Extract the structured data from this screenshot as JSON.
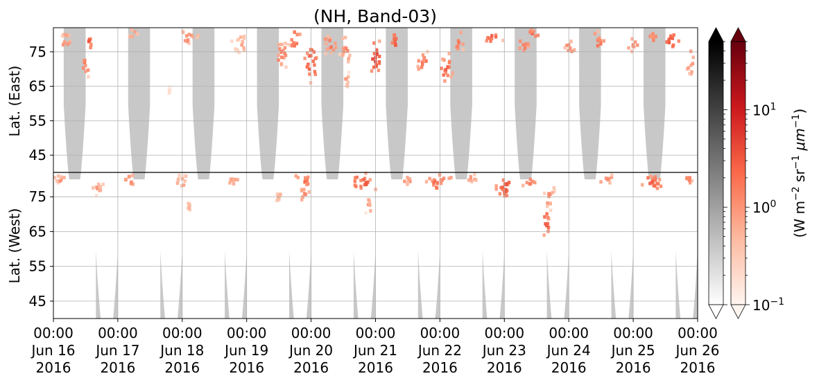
{
  "chart_data": {
    "type": "heatmap",
    "title": "(NH, Band-03)",
    "x": {
      "range": [
        "2016-06-16T00:00",
        "2016-06-26T00:00"
      ],
      "ticks": [
        {
          "line1": "00:00",
          "line2": "Jun 16",
          "line3": "2016"
        },
        {
          "line1": "00:00",
          "line2": "Jun 17",
          "line3": "2016"
        },
        {
          "line1": "00:00",
          "line2": "Jun 18",
          "line3": "2016"
        },
        {
          "line1": "00:00",
          "line2": "Jun 19",
          "line3": "2016"
        },
        {
          "line1": "00:00",
          "line2": "Jun 20",
          "line3": "2016"
        },
        {
          "line1": "00:00",
          "line2": "Jun 21",
          "line3": "2016"
        },
        {
          "line1": "00:00",
          "line2": "Jun 22",
          "line3": "2016"
        },
        {
          "line1": "00:00",
          "line2": "Jun 23",
          "line3": "2016"
        },
        {
          "line1": "00:00",
          "line2": "Jun 24",
          "line3": "2016"
        },
        {
          "line1": "00:00",
          "line2": "Jun 25",
          "line3": "2016"
        },
        {
          "line1": "00:00",
          "line2": "Jun 26",
          "line3": "2016"
        }
      ]
    },
    "y_east": {
      "label": "Lat. (East)",
      "ticks": [
        "45",
        "55",
        "65",
        "75"
      ],
      "values": [
        45,
        55,
        65,
        75
      ],
      "range": [
        40,
        82
      ]
    },
    "y_west": {
      "label": "Lat. (West)",
      "ticks": [
        "75",
        "65",
        "55",
        "45"
      ],
      "values": [
        75,
        65,
        55,
        45
      ],
      "range": [
        82,
        40
      ]
    },
    "grid": true,
    "colorbar_gray": {
      "scale": "log",
      "range": [
        0.1,
        50
      ],
      "extend": "both",
      "colors": [
        "#ffffff",
        "#000000"
      ]
    },
    "colorbar_red": {
      "scale": "log",
      "range": [
        0.1,
        50
      ],
      "extend": "both",
      "colors": [
        "#fff5f0",
        "#fcbba1",
        "#fb6a4a",
        "#cb181d",
        "#67000d"
      ],
      "ticks": [
        {
          "base": "10",
          "exp": "1",
          "value": 10
        },
        {
          "base": "10",
          "exp": "0",
          "value": 1
        },
        {
          "base": "10",
          "exp": "−1",
          "value": 0.1
        }
      ],
      "label": {
        "main": "(W m",
        "e1": "−2",
        "mid1": " sr",
        "e2": "−1",
        "mid2": " μm",
        "e3": "−1",
        "end": ")"
      }
    },
    "nodata_color": "#c8c8c8",
    "nodata_east_day_fraction": 0.33,
    "nodata_west_day_fraction": 0.83,
    "nodata_half_width_days": 0.17,
    "nodata_lat_limit": 59.5,
    "activity_clusters": [
      {
        "side": "east",
        "day": 0.2,
        "lat": 78,
        "w": 0.12,
        "h": 4,
        "peak": 1.0
      },
      {
        "side": "east",
        "day": 0.5,
        "lat": 71,
        "w": 0.06,
        "h": 5,
        "peak": 2.0
      },
      {
        "side": "east",
        "day": 0.55,
        "lat": 78,
        "w": 0.06,
        "h": 3,
        "peak": 2.5
      },
      {
        "side": "east",
        "day": 1.25,
        "lat": 80,
        "w": 0.15,
        "h": 2,
        "peak": 0.8
      },
      {
        "side": "east",
        "day": 2.1,
        "lat": 79,
        "w": 0.18,
        "h": 3,
        "peak": 1.0
      },
      {
        "side": "east",
        "day": 2.9,
        "lat": 77,
        "w": 0.15,
        "h": 4,
        "peak": 0.7
      },
      {
        "side": "east",
        "day": 3.55,
        "lat": 74,
        "w": 0.15,
        "h": 5,
        "peak": 1.5
      },
      {
        "side": "east",
        "day": 3.75,
        "lat": 78,
        "w": 0.12,
        "h": 4,
        "peak": 2.2
      },
      {
        "side": "east",
        "day": 4.0,
        "lat": 72,
        "w": 0.12,
        "h": 7,
        "peak": 3.0
      },
      {
        "side": "east",
        "day": 4.3,
        "lat": 77,
        "w": 0.15,
        "h": 4,
        "peak": 1.5
      },
      {
        "side": "east",
        "day": 4.55,
        "lat": 75,
        "w": 0.12,
        "h": 5,
        "peak": 1.2
      },
      {
        "side": "east",
        "day": 4.55,
        "lat": 67,
        "w": 0.06,
        "h": 3,
        "peak": 0.8
      },
      {
        "side": "east",
        "day": 5.0,
        "lat": 73,
        "w": 0.12,
        "h": 6,
        "peak": 4.5
      },
      {
        "side": "east",
        "day": 5.3,
        "lat": 78,
        "w": 0.12,
        "h": 3,
        "peak": 2.5
      },
      {
        "side": "east",
        "day": 5.75,
        "lat": 72,
        "w": 0.15,
        "h": 4,
        "peak": 1.5
      },
      {
        "side": "east",
        "day": 6.1,
        "lat": 70,
        "w": 0.12,
        "h": 6,
        "peak": 2.5
      },
      {
        "side": "east",
        "day": 6.3,
        "lat": 78,
        "w": 0.12,
        "h": 3,
        "peak": 2.0
      },
      {
        "side": "east",
        "day": 6.8,
        "lat": 79,
        "w": 0.2,
        "h": 2,
        "peak": 2.8
      },
      {
        "side": "east",
        "day": 7.3,
        "lat": 77,
        "w": 0.12,
        "h": 3,
        "peak": 1.5
      },
      {
        "side": "east",
        "day": 7.45,
        "lat": 80,
        "w": 0.12,
        "h": 2,
        "peak": 2.2
      },
      {
        "side": "east",
        "day": 8.0,
        "lat": 76,
        "w": 0.12,
        "h": 3,
        "peak": 1.2
      },
      {
        "side": "east",
        "day": 8.45,
        "lat": 78,
        "w": 0.12,
        "h": 4,
        "peak": 2.0
      },
      {
        "side": "east",
        "day": 9.0,
        "lat": 77,
        "w": 0.12,
        "h": 3,
        "peak": 1.4
      },
      {
        "side": "east",
        "day": 9.3,
        "lat": 79,
        "w": 0.12,
        "h": 2,
        "peak": 1.6
      },
      {
        "side": "east",
        "day": 9.6,
        "lat": 78,
        "w": 0.15,
        "h": 3,
        "peak": 3.5
      },
      {
        "side": "east",
        "day": 9.9,
        "lat": 72,
        "w": 0.08,
        "h": 5,
        "peak": 1.5
      },
      {
        "side": "east",
        "day": 1.8,
        "lat": 64,
        "w": 0.02,
        "h": 2,
        "peak": 0.3
      },
      {
        "side": "west",
        "day": 0.1,
        "lat": 80,
        "w": 0.12,
        "h": 2,
        "peak": 0.9
      },
      {
        "side": "west",
        "day": 0.7,
        "lat": 78,
        "w": 0.12,
        "h": 4,
        "peak": 0.8
      },
      {
        "side": "west",
        "day": 1.2,
        "lat": 80,
        "w": 0.15,
        "h": 2,
        "peak": 1.5
      },
      {
        "side": "west",
        "day": 2.0,
        "lat": 79,
        "w": 0.15,
        "h": 3,
        "peak": 0.7
      },
      {
        "side": "west",
        "day": 2.1,
        "lat": 72,
        "w": 0.03,
        "h": 2,
        "peak": 0.6
      },
      {
        "side": "west",
        "day": 2.8,
        "lat": 80,
        "w": 0.12,
        "h": 3,
        "peak": 0.8
      },
      {
        "side": "west",
        "day": 3.9,
        "lat": 80,
        "w": 0.2,
        "h": 2,
        "peak": 2.5
      },
      {
        "side": "west",
        "day": 3.9,
        "lat": 76,
        "w": 0.1,
        "h": 4,
        "peak": 1.0
      },
      {
        "side": "west",
        "day": 4.8,
        "lat": 79,
        "w": 0.25,
        "h": 3,
        "peak": 2.5
      },
      {
        "side": "west",
        "day": 4.9,
        "lat": 73,
        "w": 0.06,
        "h": 5,
        "peak": 0.8
      },
      {
        "side": "west",
        "day": 5.5,
        "lat": 80,
        "w": 0.15,
        "h": 2,
        "peak": 1.0
      },
      {
        "side": "west",
        "day": 6.0,
        "lat": 79,
        "w": 0.25,
        "h": 3,
        "peak": 2.2
      },
      {
        "side": "west",
        "day": 6.5,
        "lat": 80,
        "w": 0.12,
        "h": 2,
        "peak": 1.0
      },
      {
        "side": "west",
        "day": 7.0,
        "lat": 78,
        "w": 0.2,
        "h": 4,
        "peak": 3.0
      },
      {
        "side": "west",
        "day": 7.4,
        "lat": 79,
        "w": 0.15,
        "h": 2,
        "peak": 1.8
      },
      {
        "side": "west",
        "day": 7.7,
        "lat": 75,
        "w": 0.1,
        "h": 5,
        "peak": 1.2
      },
      {
        "side": "west",
        "day": 7.65,
        "lat": 68,
        "w": 0.07,
        "h": 6,
        "peak": 3.0
      },
      {
        "side": "west",
        "day": 8.6,
        "lat": 80,
        "w": 0.15,
        "h": 2,
        "peak": 1.5
      },
      {
        "side": "west",
        "day": 9.3,
        "lat": 79,
        "w": 0.25,
        "h": 3,
        "peak": 2.5
      },
      {
        "side": "west",
        "day": 9.85,
        "lat": 80,
        "w": 0.1,
        "h": 2,
        "peak": 1.5
      },
      {
        "side": "west",
        "day": 3.5,
        "lat": 75,
        "w": 0.05,
        "h": 3,
        "peak": 0.6
      }
    ]
  }
}
